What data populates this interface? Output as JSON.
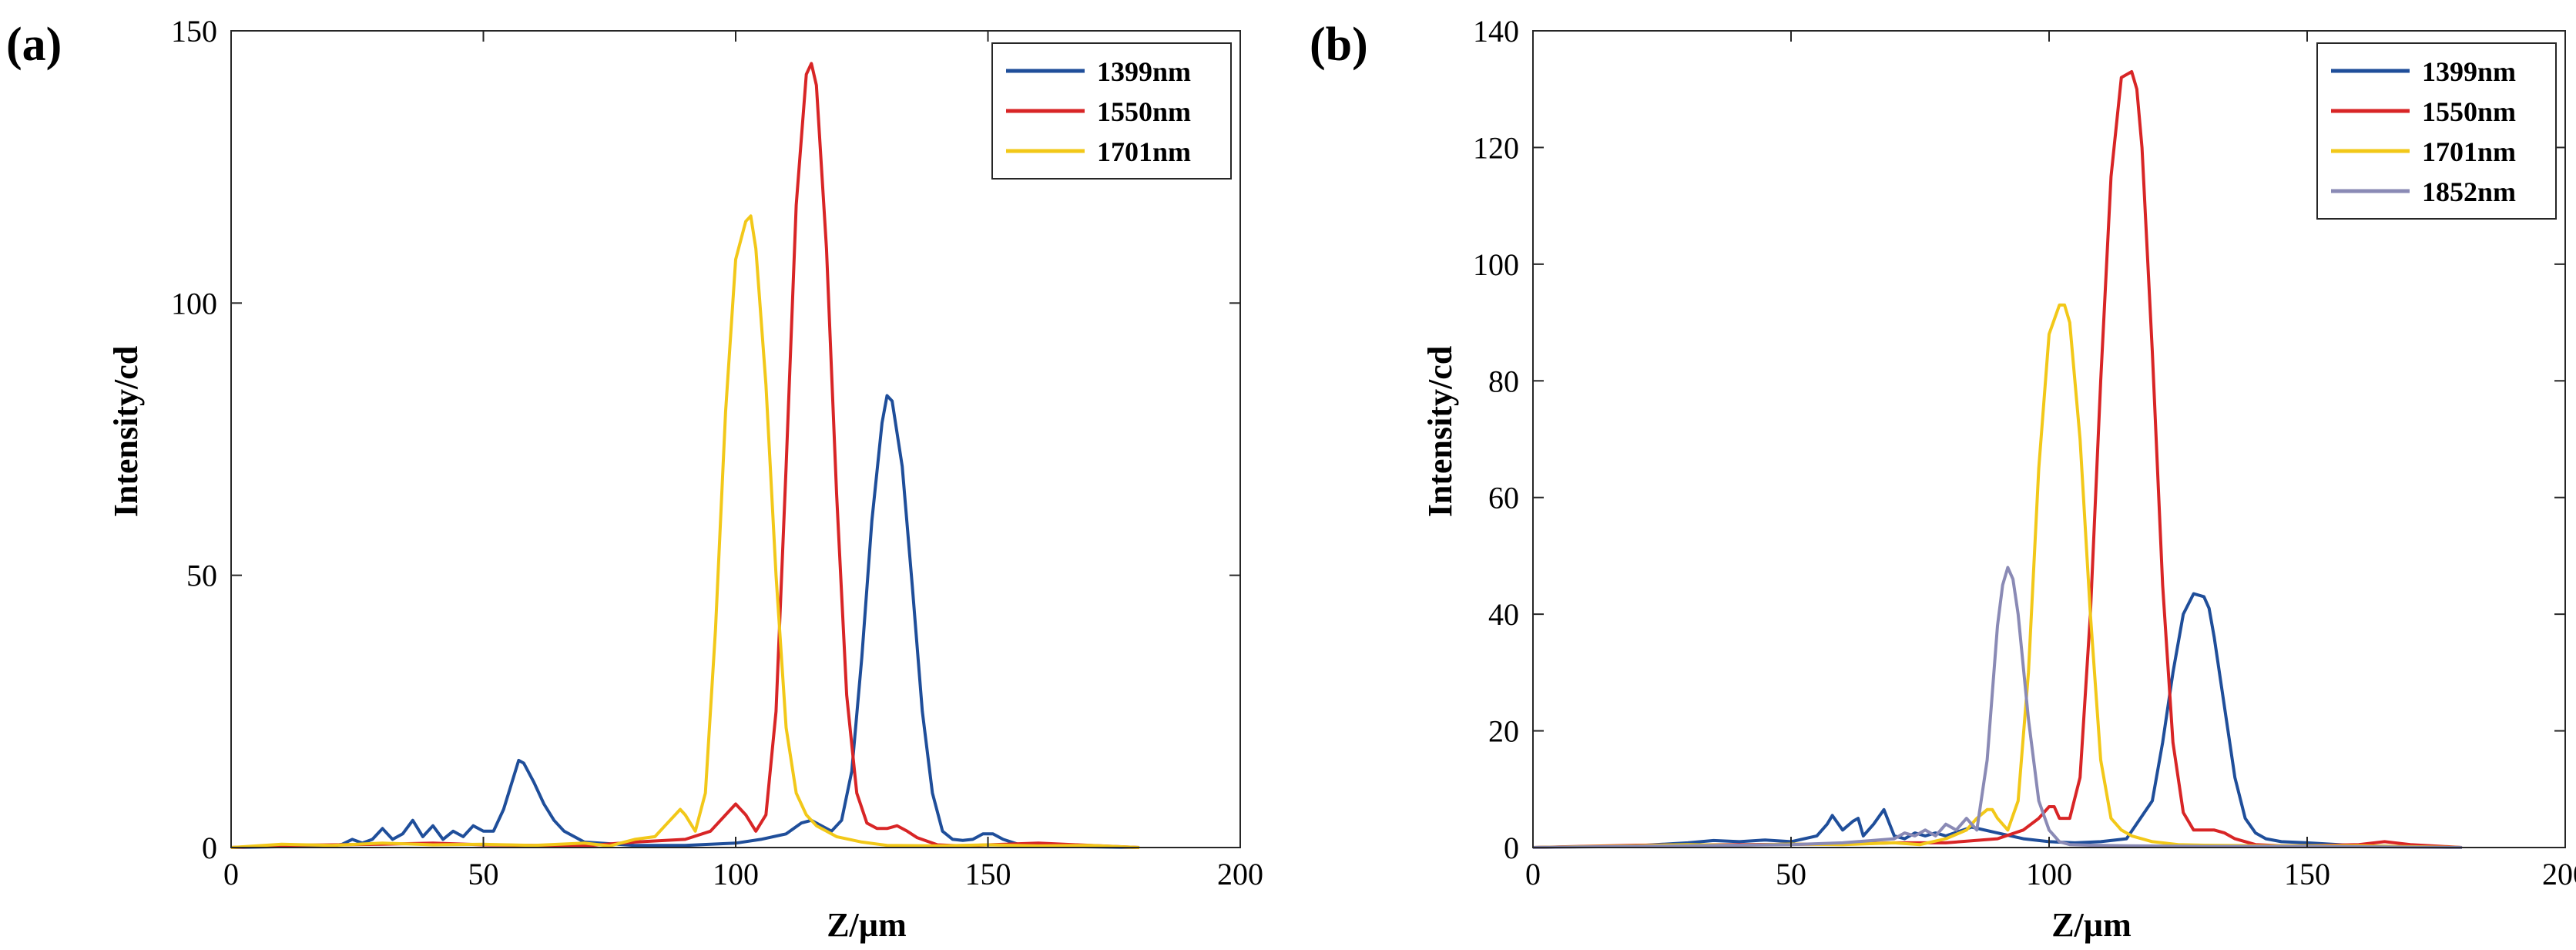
{
  "chart_data": [
    {
      "type": "line",
      "panel_label": "(a)",
      "xlabel": "Z/µm",
      "ylabel": "Intensity/cd",
      "xlim": [
        0,
        200
      ],
      "ylim": [
        0,
        150
      ],
      "xticks": [
        "0",
        "50",
        "100",
        "150",
        "200"
      ],
      "yticks": [
        "0",
        "50",
        "100",
        "150"
      ],
      "legend_position": "top-right",
      "series": [
        {
          "name": "1399nm",
          "color": "#1f4e9a",
          "x": [
            0,
            20,
            22,
            24,
            26,
            28,
            30,
            32,
            34,
            36,
            38,
            40,
            42,
            44,
            46,
            48,
            50,
            52,
            54,
            56,
            57,
            58,
            60,
            62,
            64,
            66,
            70,
            80,
            90,
            100,
            105,
            110,
            113,
            115,
            117,
            119,
            121,
            123,
            125,
            127,
            129,
            130,
            131,
            133,
            135,
            137,
            139,
            141,
            143,
            145,
            147,
            149,
            151,
            153,
            157,
            180
          ],
          "y": [
            0,
            0.3,
            0.6,
            1.5,
            0.8,
            1.5,
            3.5,
            1.5,
            2.5,
            5,
            2,
            4,
            1.5,
            3,
            2,
            4,
            3,
            3,
            7,
            13,
            16,
            15.5,
            12,
            8,
            5,
            3,
            1,
            0.4,
            0.4,
            0.8,
            1.5,
            2.5,
            4.5,
            5,
            4,
            3,
            5,
            14,
            35,
            60,
            78,
            83,
            82,
            70,
            48,
            25,
            10,
            3,
            1.5,
            1.3,
            1.5,
            2.5,
            2.5,
            1.5,
            0.3,
            0
          ]
        },
        {
          "name": "1550nm",
          "color": "#d82526",
          "x": [
            0,
            10,
            20,
            30,
            40,
            50,
            60,
            70,
            80,
            90,
            95,
            98,
            100,
            102,
            104,
            106,
            108,
            110,
            112,
            114,
            115,
            116,
            118,
            120,
            122,
            124,
            126,
            128,
            130,
            132,
            134,
            136,
            140,
            145,
            150,
            160,
            180
          ],
          "y": [
            0,
            0.4,
            0.5,
            0.6,
            0.8,
            0.5,
            0.4,
            0.3,
            1,
            1.5,
            3,
            6,
            8,
            6,
            3,
            6,
            25,
            70,
            118,
            142,
            144,
            140,
            110,
            65,
            28,
            10,
            4.5,
            3.5,
            3.5,
            4,
            3,
            1.8,
            0.5,
            0.3,
            0.5,
            0.8,
            0
          ]
        },
        {
          "name": "1701nm",
          "color": "#f2c819",
          "x": [
            0,
            10,
            20,
            30,
            40,
            50,
            60,
            70,
            75,
            80,
            84,
            86,
            88,
            89,
            90,
            92,
            94,
            96,
            98,
            100,
            102,
            103,
            104,
            106,
            108,
            110,
            112,
            114,
            116,
            118,
            120,
            125,
            130,
            140,
            150,
            160,
            170,
            180
          ],
          "y": [
            0,
            0.6,
            0.4,
            0.8,
            0.5,
            0.6,
            0.4,
            0.8,
            0.3,
            1.5,
            2,
            4,
            6,
            7,
            6,
            3,
            10,
            40,
            80,
            108,
            115,
            116,
            110,
            85,
            50,
            22,
            10,
            6,
            4,
            3,
            2,
            1,
            0.4,
            0.3,
            0.5,
            0.3,
            0.4,
            0
          ]
        }
      ]
    },
    {
      "type": "line",
      "panel_label": "(b)",
      "xlabel": "Z/µm",
      "ylabel": "Intensity/cd",
      "xlim": [
        0,
        200
      ],
      "ylim": [
        0,
        140
      ],
      "xticks": [
        "0",
        "50",
        "100",
        "150",
        "200"
      ],
      "yticks": [
        "0",
        "20",
        "40",
        "60",
        "80",
        "100",
        "120",
        "140"
      ],
      "legend_position": "top-right",
      "series": [
        {
          "name": "1399nm",
          "color": "#1f4e9a",
          "x": [
            0,
            20,
            30,
            35,
            40,
            45,
            50,
            55,
            57,
            58,
            60,
            62,
            63,
            64,
            66,
            68,
            70,
            72,
            74,
            76,
            78,
            80,
            85,
            90,
            95,
            100,
            105,
            110,
            115,
            120,
            122,
            124,
            126,
            128,
            130,
            131,
            132,
            134,
            136,
            138,
            140,
            142,
            145,
            150,
            160,
            180
          ],
          "y": [
            0,
            0.3,
            0.8,
            1.2,
            1,
            1.3,
            1,
            2,
            4,
            5.5,
            3,
            4.5,
            5,
            2,
            4,
            6.5,
            2,
            1.5,
            2.5,
            2,
            2.5,
            2,
            3.5,
            2.5,
            1.5,
            1,
            0.8,
            1,
            1.5,
            8,
            18,
            30,
            40,
            43.5,
            43,
            41,
            36,
            24,
            12,
            5,
            2.5,
            1.5,
            1,
            0.8,
            0.3,
            0
          ]
        },
        {
          "name": "1550nm",
          "color": "#d82526",
          "x": [
            0,
            20,
            40,
            60,
            70,
            80,
            90,
            95,
            98,
            100,
            101,
            102,
            104,
            106,
            108,
            110,
            112,
            114,
            116,
            117,
            118,
            120,
            122,
            124,
            126,
            128,
            130,
            132,
            134,
            136,
            140,
            145,
            150,
            160,
            165,
            170,
            180
          ],
          "y": [
            0,
            0.4,
            0.5,
            0.6,
            0.8,
            0.8,
            1.5,
            3,
            5,
            7,
            7,
            5,
            5,
            12,
            40,
            80,
            115,
            132,
            133,
            130,
            120,
            85,
            45,
            18,
            6,
            3,
            3,
            3,
            2.5,
            1.5,
            0.5,
            0.3,
            0.3,
            0.5,
            1,
            0.5,
            0
          ]
        },
        {
          "name": "1701nm",
          "color": "#f2c819",
          "x": [
            0,
            20,
            30,
            40,
            50,
            60,
            70,
            75,
            80,
            84,
            86,
            88,
            89,
            90,
            92,
            94,
            96,
            98,
            100,
            102,
            103,
            104,
            106,
            108,
            110,
            112,
            114,
            116,
            120,
            125,
            130,
            140,
            150,
            160,
            180
          ],
          "y": [
            0,
            0.3,
            0.5,
            0.4,
            0.6,
            0.5,
            0.8,
            0.5,
            1.5,
            3,
            5,
            6.5,
            6.5,
            5,
            3,
            8,
            30,
            65,
            88,
            93,
            93,
            90,
            70,
            40,
            15,
            5,
            3,
            2,
            1,
            0.5,
            0.4,
            0.3,
            0.3,
            0.3,
            0
          ]
        },
        {
          "name": "1852nm",
          "color": "#8a8ab5",
          "x": [
            0,
            30,
            50,
            60,
            70,
            72,
            74,
            76,
            78,
            80,
            82,
            84,
            86,
            88,
            90,
            91,
            92,
            93,
            94,
            96,
            98,
            100,
            102,
            104,
            108,
            115,
            130,
            150,
            180
          ],
          "y": [
            0,
            0.3,
            0.5,
            0.8,
            1.5,
            2.5,
            2,
            3,
            2,
            4,
            3,
            5,
            3,
            15,
            38,
            45,
            48,
            46,
            40,
            22,
            8,
            3,
            1,
            0.5,
            0.4,
            0.3,
            0.2,
            0.2,
            0
          ]
        }
      ]
    }
  ]
}
